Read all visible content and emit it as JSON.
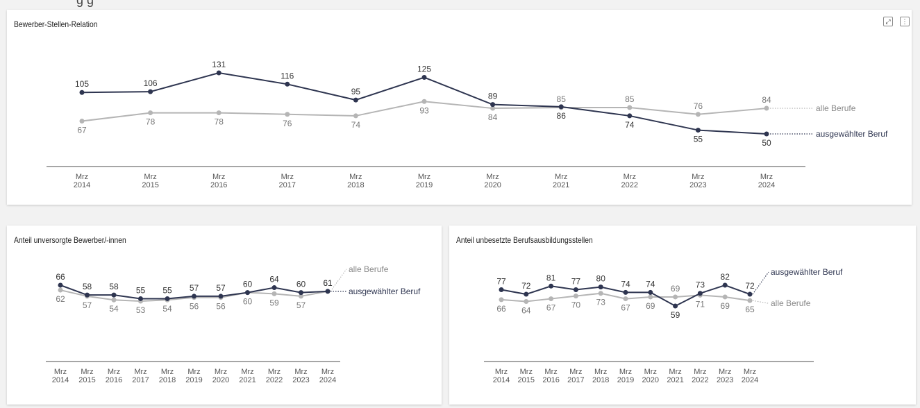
{
  "page": {
    "top_title_cut": "g      g"
  },
  "charts": [
    {
      "title": "Bewerber-Stellen-Relation",
      "chart_data": {
        "type": "line",
        "categories": [
          "Mrz 2014",
          "Mrz 2015",
          "Mrz 2016",
          "Mrz 2017",
          "Mrz 2018",
          "Mrz 2019",
          "Mrz 2020",
          "Mrz 2021",
          "Mrz 2022",
          "Mrz 2023",
          "Mrz 2024"
        ],
        "series": [
          {
            "name": "ausgewählter Beruf",
            "color": "#2e3550",
            "values": [
              105,
              106,
              131,
              116,
              95,
              125,
              89,
              86,
              74,
              55,
              50
            ]
          },
          {
            "name": "alle Berufe",
            "color": "#b5b5b5",
            "values": [
              67,
              78,
              78,
              76,
              74,
              93,
              84,
              85,
              85,
              76,
              84
            ]
          }
        ]
      }
    },
    {
      "title": "Anteil unversorgte Bewerber/-innen",
      "chart_data": {
        "type": "line",
        "categories": [
          "Mrz 2014",
          "Mrz 2015",
          "Mrz 2016",
          "Mrz 2017",
          "Mrz 2018",
          "Mrz 2019",
          "Mrz 2020",
          "Mrz 2021",
          "Mrz 2022",
          "Mrz 2023",
          "Mrz 2024"
        ],
        "series": [
          {
            "name": "ausgewählter Beruf",
            "color": "#2e3550",
            "values": [
              66,
              58,
              58,
              55,
              55,
              57,
              57,
              60,
              64,
              60,
              61
            ]
          },
          {
            "name": "alle Berufe",
            "color": "#b5b5b5",
            "values": [
              62,
              57,
              54,
              53,
              54,
              56,
              56,
              60,
              59,
              57,
              61
            ]
          }
        ]
      }
    },
    {
      "title": "Anteil unbesetzte Berufsausbildungsstellen",
      "chart_data": {
        "type": "line",
        "categories": [
          "Mrz 2014",
          "Mrz 2015",
          "Mrz 2016",
          "Mrz 2017",
          "Mrz 2018",
          "Mrz 2019",
          "Mrz 2020",
          "Mrz 2021",
          "Mrz 2022",
          "Mrz 2023",
          "Mrz 2024"
        ],
        "series": [
          {
            "name": "ausgewählter Beruf",
            "color": "#2e3550",
            "values": [
              77,
              72,
              81,
              77,
              80,
              74,
              74,
              59,
              73,
              82,
              72
            ]
          },
          {
            "name": "alle Berufe",
            "color": "#b5b5b5",
            "values": [
              66,
              64,
              67,
              70,
              73,
              67,
              69,
              69,
              71,
              69,
              65
            ]
          }
        ]
      }
    }
  ],
  "icons": {
    "expand": "expand-icon",
    "menu": "more-vertical-icon"
  }
}
